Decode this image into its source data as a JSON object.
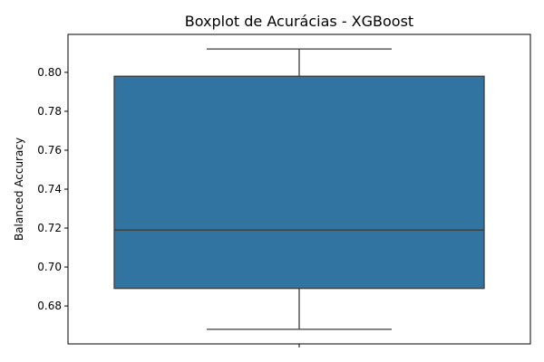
{
  "chart_data": {
    "type": "box",
    "title": "Boxplot de Acurácias - XGBoost",
    "xlabel": "",
    "ylabel": "Balanced Accuracy",
    "ylim": [
      0.6605,
      0.8195
    ],
    "yticks": [
      0.68,
      0.7,
      0.72,
      0.74,
      0.76,
      0.78,
      0.8
    ],
    "ytick_labels": [
      "0.68",
      "0.70",
      "0.72",
      "0.74",
      "0.76",
      "0.78",
      "0.80"
    ],
    "grid": false,
    "legend": "none",
    "box": {
      "whisker_low": 0.668,
      "q1": 0.689,
      "median": 0.719,
      "q3": 0.798,
      "whisker_high": 0.812
    },
    "colors": {
      "box_fill": "#3274a1",
      "line": "#3c3c3c",
      "axis": "#000000"
    }
  }
}
